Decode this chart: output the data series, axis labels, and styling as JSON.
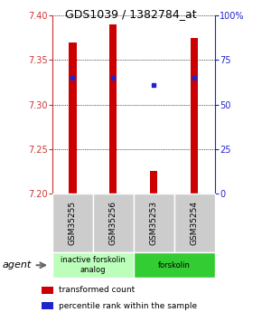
{
  "title": "GDS1039 / 1382784_at",
  "samples": [
    "GSM35255",
    "GSM35256",
    "GSM35253",
    "GSM35254"
  ],
  "bar_values": [
    7.37,
    7.39,
    7.225,
    7.375
  ],
  "bar_base": 7.2,
  "percentile_values": [
    7.33,
    7.33,
    7.322,
    7.33
  ],
  "ylim": [
    7.2,
    7.4
  ],
  "y2lim": [
    0,
    100
  ],
  "yticks": [
    7.2,
    7.25,
    7.3,
    7.35,
    7.4
  ],
  "y2ticks": [
    0,
    25,
    50,
    75,
    100
  ],
  "bar_color": "#cc0000",
  "blue_color": "#2222cc",
  "groups": [
    {
      "label": "inactive forskolin\nanalog",
      "samples": [
        0,
        1
      ],
      "color": "#bbffbb"
    },
    {
      "label": "forskolin",
      "samples": [
        2,
        3
      ],
      "color": "#33cc33"
    }
  ],
  "agent_label": "agent",
  "legend_items": [
    {
      "color": "#cc0000",
      "label": "transformed count"
    },
    {
      "color": "#2222cc",
      "label": "percentile rank within the sample"
    }
  ],
  "background_color": "#ffffff",
  "plot_bg": "#ffffff",
  "bar_width": 0.18,
  "sample_box_color": "#cccccc",
  "left_tick_color": "#cc3333",
  "right_tick_color": "#2222cc",
  "title_fontsize": 9,
  "tick_fontsize": 7,
  "label_fontsize": 6.5
}
